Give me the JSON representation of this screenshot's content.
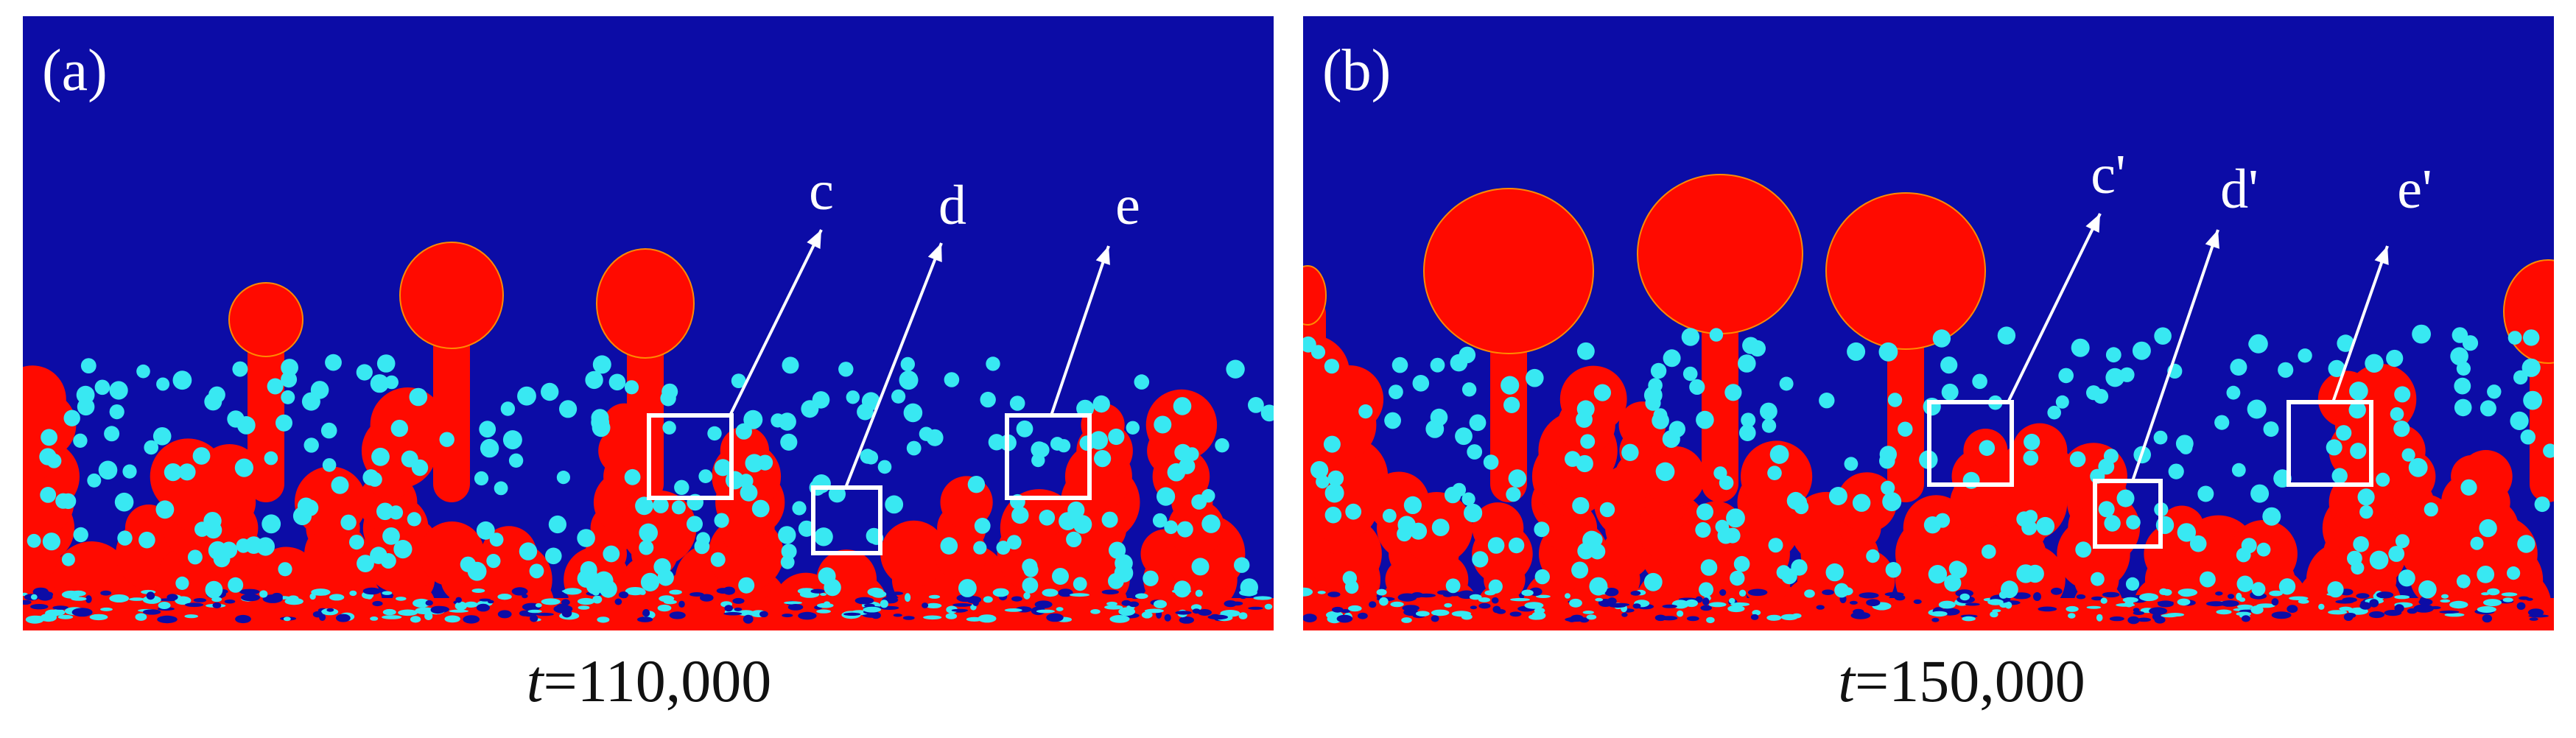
{
  "panels": [
    {
      "label": "(a)",
      "callouts": [
        "c",
        "d",
        "e"
      ],
      "caption": {
        "symbol": "t",
        "text": "=110,000"
      }
    },
    {
      "label": "(b)",
      "callouts": [
        "c'",
        "d'",
        "e'"
      ],
      "caption": {
        "symbol": "t",
        "text": "=150,000"
      }
    }
  ]
}
